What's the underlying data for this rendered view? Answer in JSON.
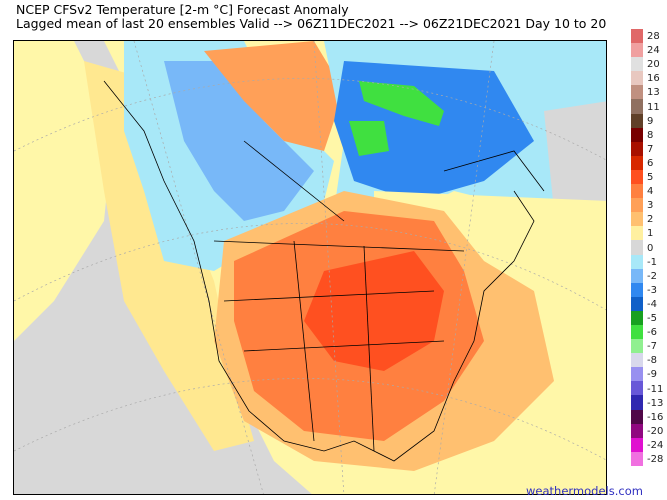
{
  "header": {
    "title": "NCEP CFSv2 Temperature [2-m °C] Forecast Anomaly",
    "subtitle": "Lagged mean of last 20 ensembles Valid --> 06Z11DEC2021 --> 06Z21DEC2021  Day 10 to 20"
  },
  "colorbar": {
    "labels": [
      "28",
      "24",
      "20",
      "16",
      "13",
      "11",
      "9",
      "8",
      "7",
      "6",
      "5",
      "4",
      "3",
      "2",
      "1",
      "0",
      "-1",
      "-2",
      "-3",
      "-4",
      "-5",
      "-6",
      "-7",
      "-8",
      "-9",
      "-11",
      "-13",
      "-16",
      "-20",
      "-24",
      "-28"
    ],
    "colors": [
      "#e06868",
      "#f0a0a0",
      "#e0e0e0",
      "#e8c8c0",
      "#c09080",
      "#907060",
      "#604028",
      "#780000",
      "#a81000",
      "#d82800",
      "#ff5020",
      "#ff8040",
      "#ffa058",
      "#ffc070",
      "#fff0a0",
      "#d8d8d8",
      "#a8e8f8",
      "#78b8f8",
      "#3088f0",
      "#1060c8",
      "#18a020",
      "#40e040",
      "#90f090",
      "#d8d8ec",
      "#9890f0",
      "#6858d8",
      "#3028b0",
      "#500848",
      "#900880",
      "#e010d0",
      "#f070e0"
    ]
  },
  "credit": "weathermodels.com"
}
